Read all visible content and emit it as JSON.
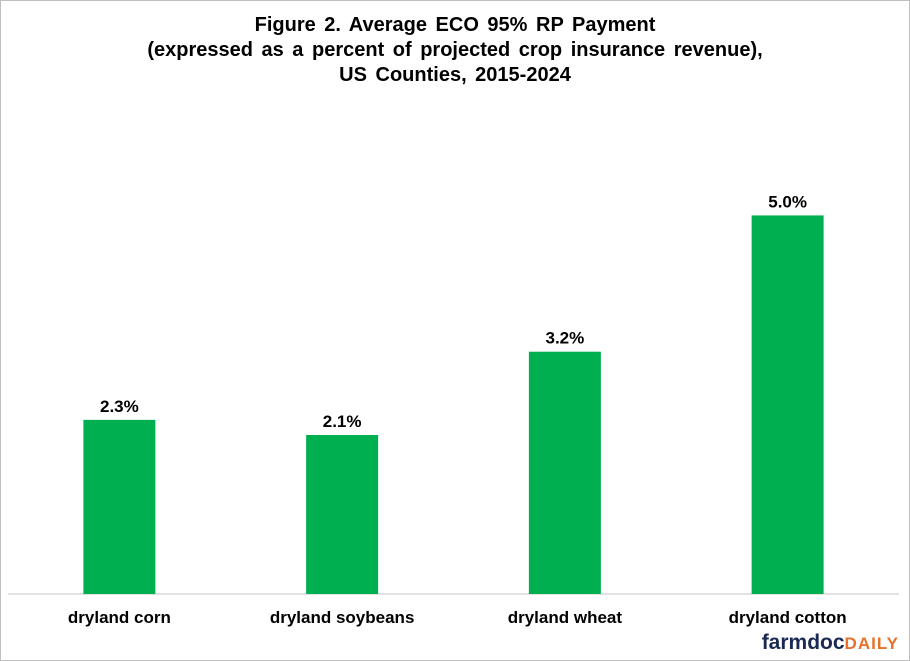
{
  "title": {
    "line1": "Figure 2.  Average ECO 95% RP Payment",
    "line2": "(expressed as a percent of projected crop insurance revenue),",
    "line3": "US Counties, 2015-2024"
  },
  "chart_data": {
    "type": "bar",
    "categories": [
      "dryland corn",
      "dryland soybeans",
      "dryland wheat",
      "dryland cotton"
    ],
    "values": [
      2.3,
      2.1,
      3.2,
      5.0
    ],
    "data_labels": [
      "2.3%",
      "2.1%",
      "3.2%",
      "5.0%"
    ],
    "ylim": [
      0,
      5.6
    ],
    "grid": false,
    "legend": "none",
    "bar_color": "#00b050",
    "axis_color": "#d9d9d9"
  },
  "logo": {
    "part1": "farmdoc",
    "part2": "DAILY",
    "color1": "#1b2a55",
    "color2": "#e8702a"
  }
}
